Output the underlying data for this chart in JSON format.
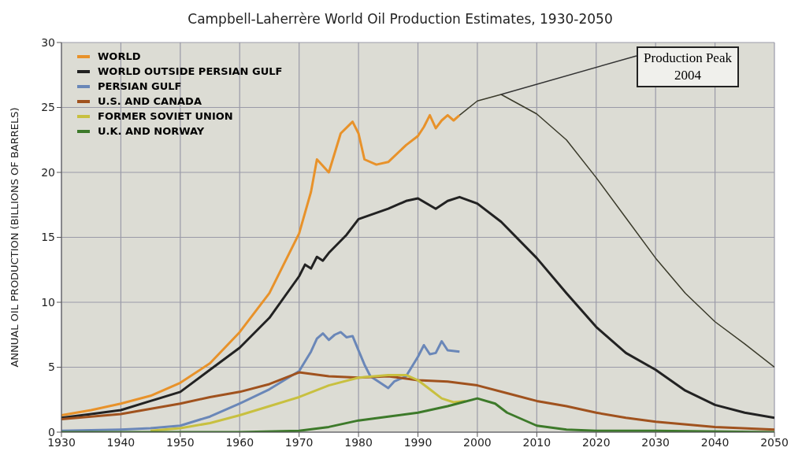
{
  "chart_data": {
    "type": "line",
    "title": "Campbell-Laherrère World Oil Production Estimates, 1930-2050",
    "ylabel": "ANNUAL OIL PRODUCTION (BILLIONS OF BARRELS)",
    "xlim": [
      1930,
      2050
    ],
    "xticks": [
      1930,
      1940,
      1950,
      1960,
      1970,
      1980,
      1990,
      2000,
      2010,
      2020,
      2030,
      2040,
      2050
    ],
    "ylim": [
      0,
      30
    ],
    "yticks": [
      0,
      5,
      10,
      15,
      20,
      25,
      30
    ],
    "grid": true,
    "legend": "top left",
    "annotations": [
      {
        "text": "Production Peak 2004",
        "x": 2004,
        "y": 26
      }
    ],
    "series": [
      {
        "name": "WORLD",
        "color": "#e8922a",
        "x": [
          1930,
          1935,
          1940,
          1945,
          1950,
          1955,
          1960,
          1965,
          1970,
          1972,
          1973,
          1975,
          1976,
          1977,
          1979,
          1980,
          1981,
          1983,
          1985,
          1988,
          1990,
          1991,
          1992,
          1993,
          1994,
          1995,
          1996,
          1997
        ],
        "values": [
          1.3,
          1.7,
          2.2,
          2.8,
          3.8,
          5.3,
          7.7,
          10.7,
          15.3,
          18.5,
          21,
          20,
          21.5,
          23,
          23.9,
          23,
          21,
          20.6,
          20.8,
          22.1,
          22.8,
          23.5,
          24.4,
          23.4,
          24,
          24.4,
          24,
          24.4
        ]
      },
      {
        "name": "WORLD OUTSIDE PERSIAN GULF",
        "color": "#222222",
        "x": [
          1930,
          1935,
          1940,
          1945,
          1950,
          1955,
          1960,
          1965,
          1970,
          1971,
          1972,
          1973,
          1974,
          1975,
          1978,
          1980,
          1985,
          1988,
          1990,
          1993,
          1995,
          1997,
          2000,
          2004,
          2010,
          2015,
          2020,
          2025,
          2030,
          2035,
          2040,
          2045,
          2050
        ],
        "values": [
          1.1,
          1.4,
          1.7,
          2.4,
          3.1,
          4.8,
          6.5,
          8.8,
          12,
          12.9,
          12.6,
          13.5,
          13.2,
          13.8,
          15.2,
          16.4,
          17.2,
          17.8,
          18,
          17.2,
          17.8,
          18.1,
          17.6,
          16.2,
          13.4,
          10.7,
          8.1,
          6.1,
          4.8,
          3.2,
          2.1,
          1.5,
          1.1
        ]
      },
      {
        "name": "PERSIAN GULF",
        "color": "#6a87b8",
        "x": [
          1930,
          1940,
          1945,
          1950,
          1955,
          1960,
          1965,
          1970,
          1972,
          1973,
          1974,
          1975,
          1976,
          1977,
          1978,
          1979,
          1980,
          1981,
          1982,
          1983,
          1985,
          1986,
          1988,
          1990,
          1991,
          1992,
          1993,
          1994,
          1995,
          1997
        ],
        "values": [
          0.1,
          0.2,
          0.3,
          0.5,
          1.2,
          2.2,
          3.3,
          4.7,
          6.2,
          7.2,
          7.6,
          7.1,
          7.5,
          7.7,
          7.3,
          7.4,
          6.3,
          5.2,
          4.3,
          4.0,
          3.4,
          3.9,
          4.3,
          5.8,
          6.7,
          6.0,
          6.1,
          7.0,
          6.3,
          6.2
        ]
      },
      {
        "name": "U.S. AND CANADA",
        "color": "#a0521e",
        "x": [
          1930,
          1940,
          1950,
          1955,
          1960,
          1965,
          1970,
          1975,
          1980,
          1985,
          1990,
          1995,
          2000,
          2005,
          2010,
          2015,
          2020,
          2025,
          2030,
          2040,
          2050
        ],
        "values": [
          1.0,
          1.4,
          2.2,
          2.7,
          3.1,
          3.7,
          4.6,
          4.3,
          4.2,
          4.3,
          4.0,
          3.9,
          3.6,
          3.0,
          2.4,
          2.0,
          1.5,
          1.1,
          0.8,
          0.4,
          0.2
        ]
      },
      {
        "name": "FORMER SOVIET UNION",
        "color": "#c8c040",
        "x": [
          1945,
          1950,
          1955,
          1960,
          1965,
          1970,
          1975,
          1980,
          1985,
          1988,
          1990,
          1992,
          1994,
          1996,
          1998
        ],
        "values": [
          0.1,
          0.3,
          0.7,
          1.3,
          2.0,
          2.7,
          3.6,
          4.2,
          4.4,
          4.4,
          4.0,
          3.3,
          2.6,
          2.3,
          2.4
        ]
      },
      {
        "name": "U.K. AND NORWAY",
        "color": "#3d7a2a",
        "x": [
          1930,
          1960,
          1970,
          1975,
          1980,
          1985,
          1990,
          1995,
          2000,
          2003,
          2005,
          2010,
          2015,
          2020,
          2030,
          2050
        ],
        "values": [
          0,
          0,
          0.1,
          0.4,
          0.9,
          1.2,
          1.5,
          2.0,
          2.6,
          2.2,
          1.5,
          0.5,
          0.2,
          0.1,
          0.1,
          0
        ]
      },
      {
        "color": "#3a3a2a",
        "x": [
          1997,
          2000,
          2004,
          2010,
          2015,
          2020,
          2025,
          2030,
          2035,
          2040,
          2045,
          2050
        ],
        "values": [
          24.4,
          25.5,
          26,
          24.5,
          22.5,
          19.6,
          16.5,
          13.4,
          10.7,
          8.5,
          6.8,
          5.0
        ]
      }
    ]
  }
}
